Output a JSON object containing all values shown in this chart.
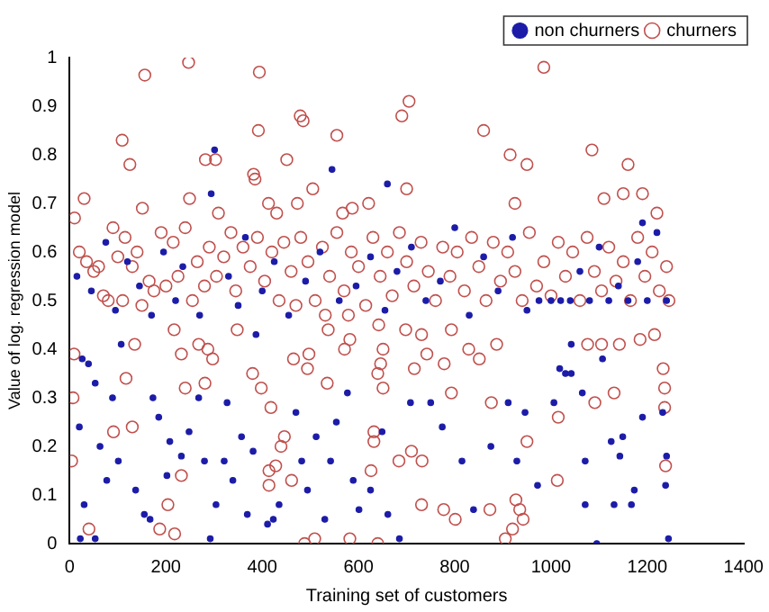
{
  "chart_data": {
    "type": "scatter",
    "xlabel": "Training set of customers",
    "ylabel": "Value of log. regression model",
    "xlim": [
      0,
      1400
    ],
    "xticks": [
      0,
      200,
      400,
      600,
      800,
      1000,
      1200,
      1400
    ],
    "ylim": [
      0,
      1
    ],
    "yticks": [
      0,
      0.1,
      0.2,
      0.3,
      0.4,
      0.5,
      0.6,
      0.7,
      0.8,
      0.9,
      1
    ],
    "grid": false,
    "legend": "top right",
    "marker": "circle",
    "series": [
      {
        "name": "non churners",
        "color": "#1c1ca8",
        "x": [
          26,
          39,
          53,
          20,
          30,
          22,
          53,
          77,
          63,
          101,
          89,
          107,
          155,
          167,
          137,
          173,
          185,
          202,
          208,
          232,
          248,
          268,
          280,
          292,
          304,
          321,
          327,
          339,
          357,
          369,
          381,
          387,
          411,
          423,
          435,
          470,
          482,
          494,
          512,
          530,
          542,
          554,
          577,
          589,
          601,
          625,
          649,
          661,
          685,
          708,
          750,
          774,
          815,
          839,
          875,
          911,
          929,
          946,
          972,
          1006,
          1018,
          1030,
          1042,
          1042,
          1071,
          1071,
          1095,
          1131,
          1125,
          1149,
          1143,
          1167,
          1173,
          1190,
          1232,
          1240,
          1238,
          1244,
          1065,
          1107,
          15,
          45,
          75,
          95,
          120,
          145,
          170,
          195,
          220,
          235,
          270,
          294,
          301,
          330,
          350,
          365,
          400,
          425,
          455,
          490,
          520,
          545,
          560,
          595,
          625,
          655,
          680,
          710,
          740,
          770,
          800,
          830,
          860,
          890,
          920,
          950,
          975,
          1000,
          1020,
          1040,
          1060,
          1080,
          1100,
          1120,
          1140,
          1160,
          1180,
          1200,
          1220,
          1240,
          660,
          1190
        ],
        "values": [
          0.38,
          0.37,
          0.33,
          0.24,
          0.08,
          0.01,
          0.01,
          0.13,
          0.2,
          0.17,
          0.3,
          0.41,
          0.06,
          0.05,
          0.11,
          0.3,
          0.26,
          0.14,
          0.21,
          0.18,
          0.23,
          0.3,
          0.17,
          0.01,
          0.08,
          0.17,
          0.29,
          0.13,
          0.22,
          0.06,
          0.19,
          0.43,
          0.04,
          0.05,
          0.08,
          0.27,
          0.17,
          0.11,
          0.22,
          0.05,
          0.17,
          0.25,
          0.31,
          0.13,
          0.07,
          0.11,
          0.23,
          0.06,
          0.01,
          0.29,
          0.29,
          0.24,
          0.17,
          0.07,
          0.2,
          0.29,
          0.17,
          0.27,
          0.12,
          0.29,
          0.36,
          0.35,
          0.35,
          0.41,
          0.17,
          0.08,
          0,
          0.08,
          0.21,
          0.22,
          0.18,
          0.08,
          0.11,
          0.26,
          0.27,
          0.18,
          0.12,
          0.01,
          0.31,
          0.38,
          0.55,
          0.52,
          0.62,
          0.48,
          0.58,
          0.53,
          0.47,
          0.6,
          0.5,
          0.57,
          0.47,
          0.72,
          0.81,
          0.55,
          0.49,
          0.63,
          0.52,
          0.58,
          0.47,
          0.54,
          0.6,
          0.77,
          0.5,
          0.53,
          0.59,
          0.48,
          0.56,
          0.61,
          0.5,
          0.54,
          0.65,
          0.47,
          0.59,
          0.52,
          0.63,
          0.48,
          0.5,
          0.5,
          0.5,
          0.5,
          0.56,
          0.5,
          0.61,
          0.5,
          0.53,
          0.5,
          0.58,
          0.5,
          0.64,
          0.5,
          0.74,
          0.66
        ]
      },
      {
        "name": "churners",
        "color": "#c0504d",
        "x": [
          156,
          247,
          109,
          125,
          30,
          10,
          394,
          392,
          479,
          485,
          555,
          282,
          303,
          382,
          385,
          451,
          505,
          249,
          309,
          151,
          413,
          430,
          473,
          621,
          567,
          587,
          985,
          705,
          690,
          860,
          915,
          950,
          1085,
          1160,
          700,
          925,
          1110,
          1150,
          1190,
          1220,
          20,
          35,
          50,
          60,
          70,
          80,
          90,
          100,
          110,
          115,
          130,
          140,
          150,
          165,
          175,
          190,
          200,
          215,
          225,
          240,
          255,
          265,
          280,
          290,
          305,
          320,
          335,
          345,
          360,
          375,
          390,
          405,
          420,
          435,
          445,
          460,
          470,
          480,
          495,
          510,
          525,
          540,
          555,
          570,
          585,
          600,
          615,
          630,
          645,
          660,
          670,
          685,
          700,
          715,
          730,
          745,
          760,
          775,
          790,
          805,
          820,
          835,
          850,
          865,
          880,
          895,
          910,
          925,
          940,
          955,
          970,
          985,
          1000,
          1015,
          1030,
          1045,
          1060,
          1075,
          1090,
          1105,
          1120,
          1135,
          1150,
          1165,
          1180,
          1195,
          1210,
          1225,
          1240,
          1245,
          9,
          7,
          4,
          40,
          91,
          130,
          117,
          135,
          217,
          232,
          240,
          281,
          268,
          287,
          297,
          204,
          187,
          218,
          232,
          348,
          380,
          398,
          418,
          446,
          439,
          428,
          414,
          414,
          461,
          465,
          494,
          497,
          535,
          537,
          531,
          571,
          582,
          579,
          632,
          632,
          626,
          640,
          646,
          651,
          642,
          651,
          509,
          582,
          640,
          488,
          698,
          731,
          793,
          742,
          716,
          778,
          829,
          851,
          887,
          793,
          876,
          1015,
          1091,
          1131,
          1233,
          1236,
          1236,
          1076,
          1105,
          1142,
          1185,
          1215,
          950,
          710,
          684,
          732,
          1013,
          1238,
          731,
          777,
          801,
          873,
          927,
          935,
          942,
          920,
          905
        ],
        "values": [
          0.964,
          0.99,
          0.83,
          0.78,
          0.71,
          0.67,
          0.97,
          0.85,
          0.88,
          0.87,
          0.84,
          0.79,
          0.79,
          0.76,
          0.75,
          0.79,
          0.73,
          0.71,
          0.68,
          0.69,
          0.7,
          0.68,
          0.7,
          0.7,
          0.68,
          0.69,
          0.98,
          0.91,
          0.88,
          0.85,
          0.8,
          0.78,
          0.81,
          0.78,
          0.73,
          0.7,
          0.71,
          0.72,
          0.72,
          0.68,
          0.6,
          0.58,
          0.56,
          0.57,
          0.51,
          0.5,
          0.65,
          0.59,
          0.5,
          0.63,
          0.57,
          0.6,
          0.49,
          0.54,
          0.52,
          0.64,
          0.53,
          0.62,
          0.55,
          0.65,
          0.5,
          0.58,
          0.53,
          0.61,
          0.55,
          0.59,
          0.64,
          0.52,
          0.61,
          0.57,
          0.63,
          0.54,
          0.6,
          0.5,
          0.62,
          0.56,
          0.49,
          0.63,
          0.58,
          0.5,
          0.61,
          0.55,
          0.64,
          0.52,
          0.6,
          0.57,
          0.49,
          0.63,
          0.55,
          0.6,
          0.51,
          0.64,
          0.58,
          0.53,
          0.62,
          0.56,
          0.5,
          0.61,
          0.55,
          0.6,
          0.52,
          0.63,
          0.57,
          0.5,
          0.62,
          0.54,
          0.6,
          0.56,
          0.5,
          0.64,
          0.53,
          0.58,
          0.51,
          0.62,
          0.55,
          0.6,
          0.5,
          0.63,
          0.56,
          0.52,
          0.61,
          0.54,
          0.58,
          0.5,
          0.63,
          0.55,
          0.6,
          0.52,
          0.57,
          0.5,
          0.39,
          0.3,
          0.17,
          0.03,
          0.23,
          0.24,
          0.34,
          0.41,
          0.44,
          0.39,
          0.32,
          0.33,
          0.41,
          0.4,
          0.38,
          0.08,
          0.03,
          0.02,
          0.14,
          0.44,
          0.35,
          0.32,
          0.28,
          0.22,
          0.2,
          0.16,
          0.15,
          0.12,
          0.13,
          0.38,
          0.36,
          0.39,
          0.33,
          0.44,
          0.47,
          0.4,
          0.42,
          0.47,
          0.23,
          0.21,
          0.15,
          0.35,
          0.37,
          0.32,
          0.45,
          0.4,
          0.01,
          0.01,
          0,
          0,
          0.44,
          0.43,
          0.44,
          0.39,
          0.36,
          0.37,
          0.4,
          0.38,
          0.41,
          0.31,
          0.29,
          0.26,
          0.29,
          0.31,
          0.36,
          0.32,
          0.28,
          0.41,
          0.41,
          0.41,
          0.42,
          0.43,
          0.21,
          0.19,
          0.17,
          0.17,
          0.13,
          0.16,
          0.08,
          0.07,
          0.05,
          0.07,
          0.09,
          0.07,
          0.05,
          0.03,
          0.01
        ]
      }
    ]
  }
}
